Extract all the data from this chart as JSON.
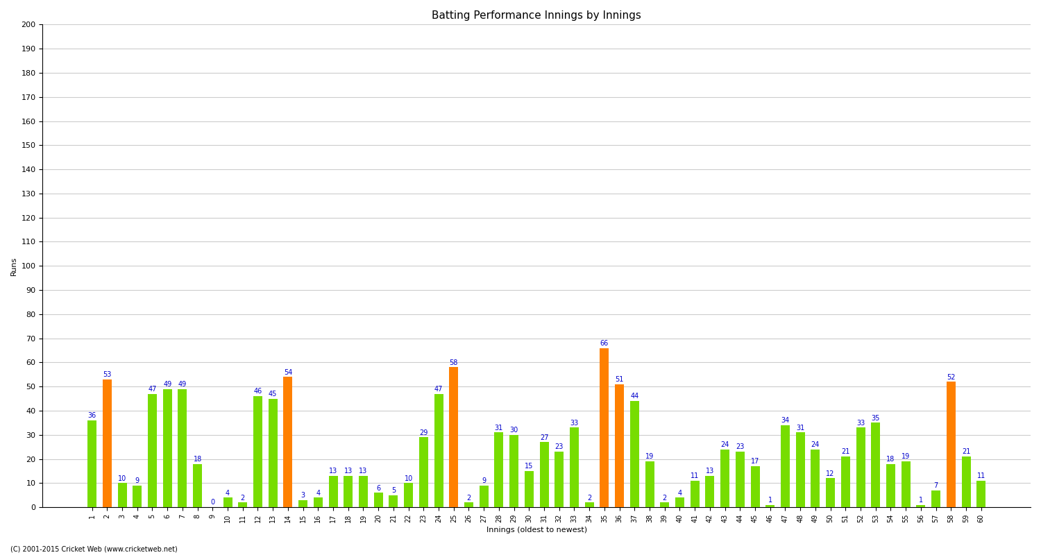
{
  "innings": [
    1,
    2,
    3,
    4,
    5,
    6,
    7,
    8,
    9,
    10,
    11,
    12,
    13,
    14,
    15,
    16,
    17,
    18,
    19,
    20,
    21,
    22,
    23,
    24,
    25,
    26,
    27,
    28,
    29,
    30,
    31,
    32,
    33,
    34,
    35,
    36,
    37,
    38,
    39,
    40,
    41,
    42,
    43,
    44,
    45,
    46,
    47,
    48,
    49,
    50,
    51,
    52,
    53,
    54,
    55,
    56,
    57,
    58,
    59,
    60
  ],
  "scores": [
    36,
    53,
    10,
    9,
    47,
    49,
    49,
    18,
    0,
    4,
    2,
    46,
    45,
    54,
    3,
    4,
    13,
    13,
    13,
    6,
    5,
    10,
    29,
    47,
    58,
    2,
    9,
    31,
    30,
    15,
    27,
    23,
    33,
    2,
    66,
    51,
    44,
    19,
    2,
    4,
    11,
    13,
    24,
    23,
    17,
    1,
    34,
    31,
    24,
    12,
    21,
    33,
    35,
    18,
    19,
    1,
    7,
    52,
    21,
    11
  ],
  "is_not_out": [
    false,
    true,
    false,
    false,
    false,
    false,
    false,
    false,
    false,
    false,
    false,
    false,
    false,
    true,
    false,
    false,
    false,
    false,
    false,
    false,
    false,
    false,
    false,
    false,
    true,
    false,
    false,
    false,
    false,
    false,
    false,
    false,
    false,
    false,
    true,
    true,
    false,
    false,
    false,
    false,
    false,
    false,
    false,
    false,
    false,
    false,
    false,
    false,
    false,
    false,
    false,
    false,
    false,
    false,
    false,
    false,
    false,
    true,
    false,
    false
  ],
  "bar_color_default": "#77DD00",
  "bar_color_notout": "#FF8000",
  "label_color": "#0000CC",
  "title": "Batting Performance Innings by Innings",
  "ylabel": "Runs",
  "xlabel": "Innings (oldest to newest)",
  "ylim": [
    0,
    200
  ],
  "yticks": [
    0,
    10,
    20,
    30,
    40,
    50,
    60,
    70,
    80,
    90,
    100,
    110,
    120,
    130,
    140,
    150,
    160,
    170,
    180,
    190,
    200
  ],
  "background_color": "#FFFFFF",
  "grid_color": "#CCCCCC",
  "footer": "(C) 2001-2015 Cricket Web (www.cricketweb.net)",
  "label_fontsize": 7,
  "axis_fontsize": 8,
  "title_fontsize": 11
}
